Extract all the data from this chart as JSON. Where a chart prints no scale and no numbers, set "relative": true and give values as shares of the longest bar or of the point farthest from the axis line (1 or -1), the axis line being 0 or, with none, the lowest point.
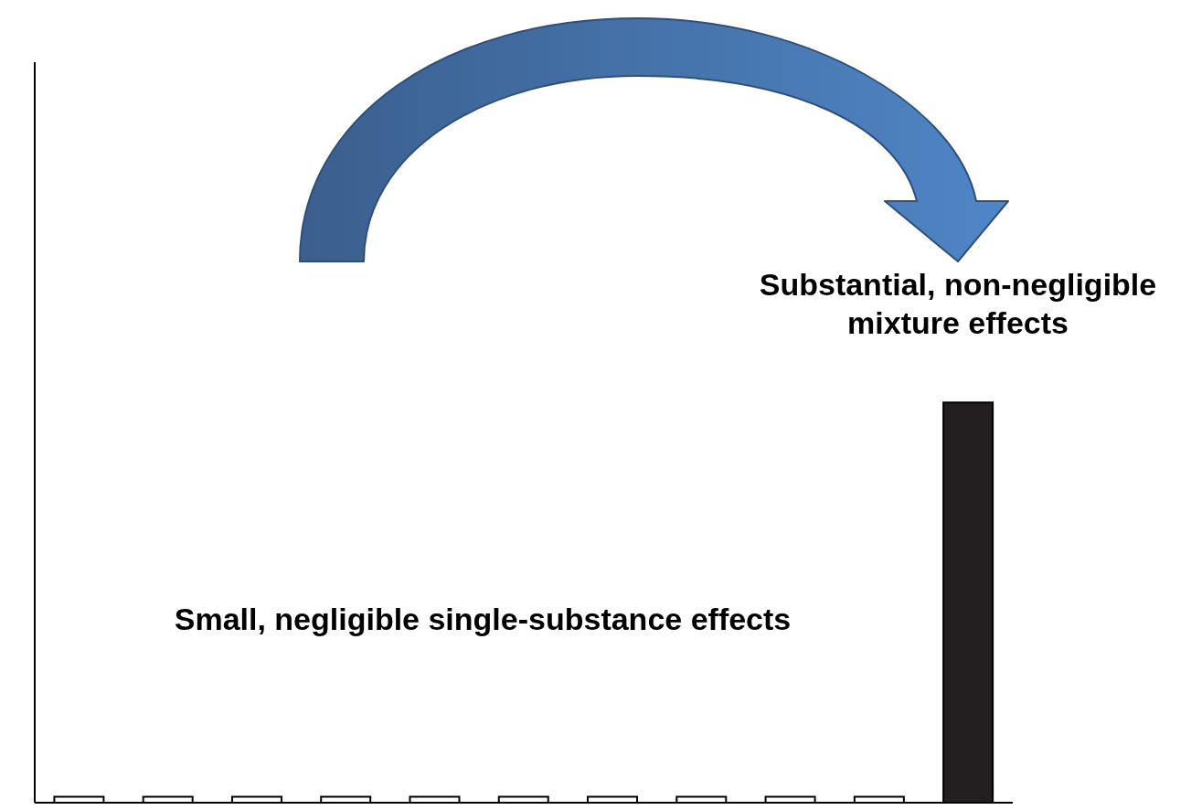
{
  "chart_data": {
    "type": "bar",
    "relative": true,
    "categories": [
      null,
      null,
      null,
      null,
      null,
      null,
      null,
      null,
      null,
      null,
      null
    ],
    "values": [
      0.015,
      0.015,
      0.015,
      0.015,
      0.015,
      0.015,
      0.015,
      0.015,
      0.015,
      0.015,
      1
    ],
    "colors": [
      "#ffffff",
      "#ffffff",
      "#ffffff",
      "#ffffff",
      "#ffffff",
      "#ffffff",
      "#ffffff",
      "#ffffff",
      "#ffffff",
      "#ffffff",
      "#231f20"
    ],
    "annotations": [
      "Substantial, non-negligible mixture effects",
      "Small, negligible single-substance effects"
    ]
  }
}
